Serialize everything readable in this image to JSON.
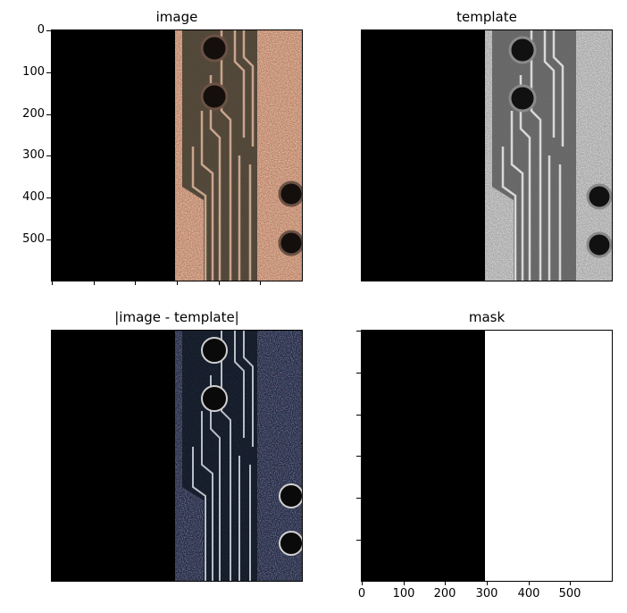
{
  "panels": {
    "image": {
      "title": "image"
    },
    "template": {
      "title": "template"
    },
    "diff": {
      "title": "|image - template|"
    },
    "mask": {
      "title": "mask"
    }
  },
  "axes": {
    "y_ticks": [
      "0",
      "100",
      "200",
      "300",
      "400",
      "500"
    ],
    "x_ticks": [
      "0",
      "100",
      "200",
      "300",
      "400",
      "500"
    ]
  }
}
